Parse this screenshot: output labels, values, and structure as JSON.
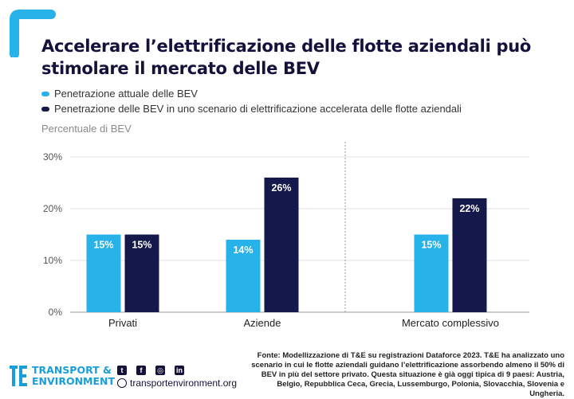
{
  "title": "Accelerare l’elettrificazione delle flotte aziendali può stimolare il mercato delle BEV",
  "colors": {
    "current": "#27b3ea",
    "accelerated": "#14184a",
    "accent": "#1a9edb"
  },
  "chart_data": {
    "type": "bar",
    "ylabel": "Percentuale di BEV",
    "ylim": [
      0,
      30
    ],
    "yticks": [
      "0%",
      "10%",
      "20%",
      "30%"
    ],
    "categories": [
      "Privati",
      "Aziende",
      "Mercato complessivo"
    ],
    "series": [
      {
        "name": "Penetrazione attuale delle BEV",
        "values": [
          15,
          14,
          15
        ],
        "labels": [
          "15%",
          "14%",
          "15%"
        ]
      },
      {
        "name": "Penetrazione delle BEV in uno scenario di elettrificazione accelerata delle flotte aziendali",
        "values": [
          15,
          26,
          22
        ],
        "labels": [
          "15%",
          "26%",
          "22%"
        ]
      }
    ],
    "grid": true,
    "separator_before": "Mercato complessivo"
  },
  "footer": {
    "logo_line1": "TRANSPORT &",
    "logo_line2": "ENVIRONMENT",
    "logo_icon": "te-logo-icon",
    "social_icons": [
      "twitter-icon",
      "facebook-icon",
      "instagram-icon",
      "linkedin-icon"
    ],
    "website": "transportenvironment.org",
    "source": "Fonte: Modellizzazione di T&E su registrazioni Dataforce 2023. T&E ha analizzato uno scenario in cui le flotte aziendali guidano l’elettrificazione assorbendo almeno il 50% di BEV in più del settore privato. Questa situazione è già oggi tipica di 9 paesi: Austria, Belgio, Repubblica Ceca, Grecia, Lussemburgo, Polonia, Slovacchia, Slovenia e Ungheria."
  }
}
